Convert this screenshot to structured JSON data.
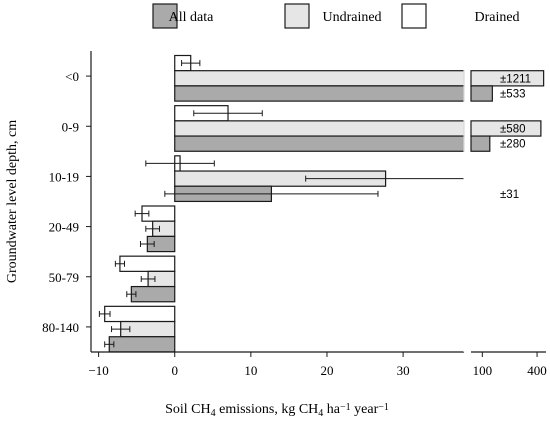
{
  "chart_data": {
    "type": "bar",
    "orientation": "horizontal",
    "title": "",
    "xlabel": "Soil CH4 emissions, kg CH4 ha−1 year−1",
    "xlabel_parts": [
      "Soil CH",
      "4",
      " emissions, kg CH",
      "4",
      " ha",
      "−1",
      " year",
      "−1"
    ],
    "ylabel": "Groundwater level depth, cm",
    "categories": [
      "<0",
      "0-9",
      "10-19",
      "20-49",
      "50-79",
      "80-140"
    ],
    "xlim_main": [
      -11,
      38
    ],
    "xlim_break": [
      38,
      449
    ],
    "xticks_main": [
      -10,
      0,
      10,
      20,
      30
    ],
    "xticks_break": [
      100,
      400
    ],
    "axis_break": true,
    "grid": false,
    "legend_position": "top",
    "colors": {
      "all_data": "#aaaaaa",
      "undrained": "#e6e6e6",
      "drained": "#ffffff",
      "stroke": "#1a1a1a"
    },
    "series": [
      {
        "name": "Drained",
        "values": [
          2.1,
          7.0,
          0.7,
          -4.3,
          -7.2,
          -9.2
        ],
        "errors": [
          1.2,
          4.5,
          4.5,
          0.9,
          0.6,
          0.7
        ],
        "error_labels": [
          "",
          "",
          "",
          "",
          "",
          ""
        ]
      },
      {
        "name": "Undrained",
        "values": [
          436,
          421,
          27.7,
          -2.9,
          -3.5,
          -7.1
        ],
        "errors": [
          null,
          null,
          10.5,
          0.9,
          0.9,
          1.2
        ],
        "error_labels": [
          "±1211",
          "±580",
          "",
          "",
          "",
          ""
        ]
      },
      {
        "name": "All data",
        "values": [
          155,
          141,
          12.7,
          -3.6,
          -5.7,
          -8.6
        ],
        "errors": [
          null,
          null,
          14.0,
          0.9,
          0.6,
          0.6
        ],
        "error_labels": [
          "±533",
          "±280",
          "±31",
          "",
          "",
          ""
        ]
      }
    ],
    "legend_order": [
      "All data",
      "Undrained",
      "Drained"
    ]
  }
}
